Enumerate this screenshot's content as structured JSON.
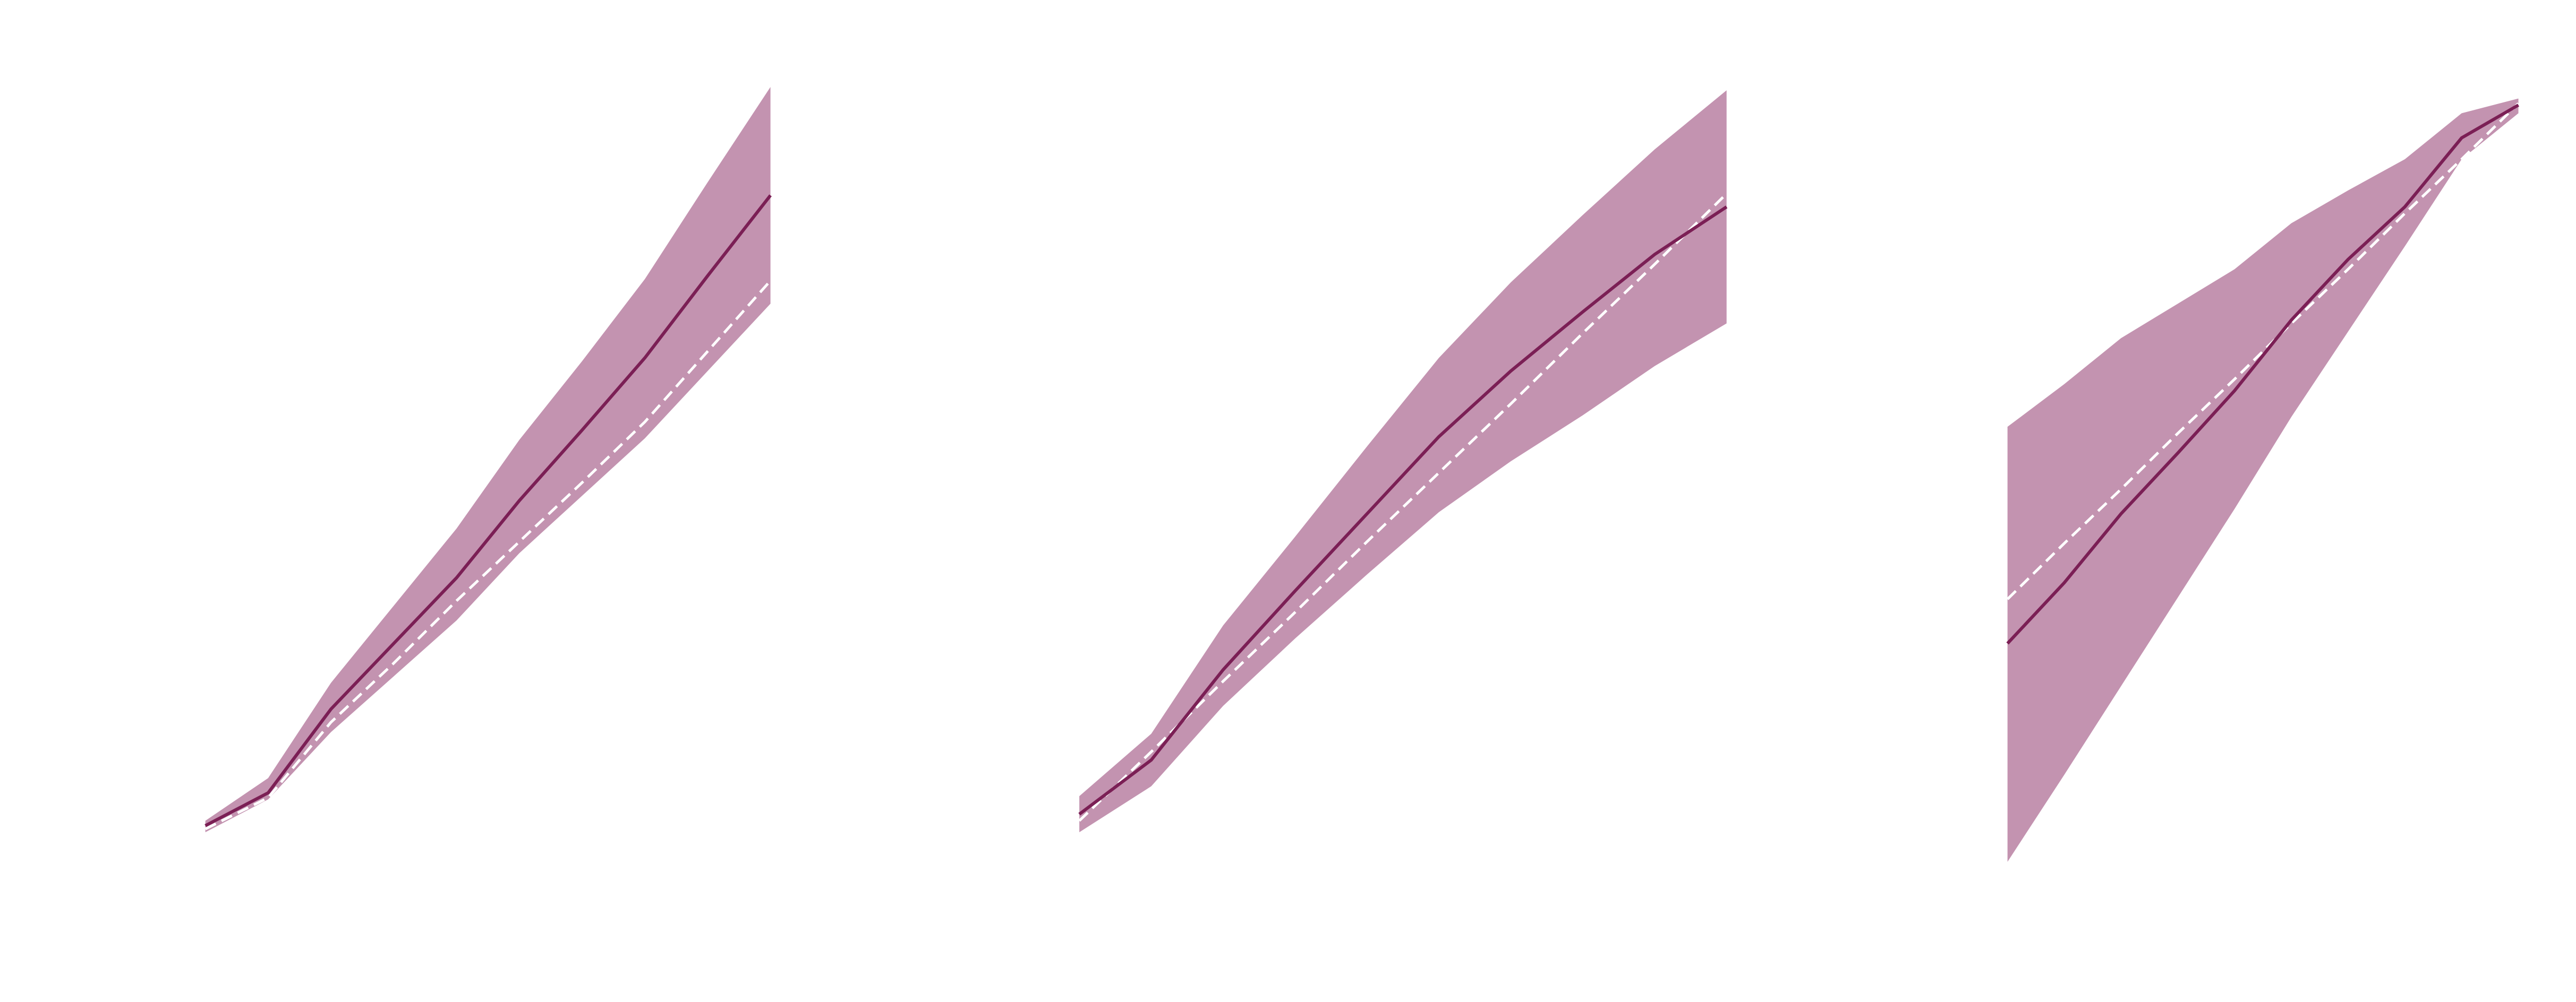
{
  "chart_data": [
    {
      "type": "line",
      "x": [
        0,
        1,
        2,
        3,
        4,
        5,
        6,
        7,
        8,
        9
      ],
      "xlim": [
        0,
        9
      ],
      "ylim": [
        0,
        600
      ],
      "color": "#7b1f55",
      "values": [
        97,
        117,
        168,
        208,
        248,
        295,
        338,
        382,
        432,
        481
      ],
      "band": {
        "color": "#c393b0",
        "upper": [
          100,
          126,
          184,
          231,
          278,
          332,
          380,
          430,
          489,
          547
        ],
        "lower": [
          93,
          113,
          154,
          188,
          222,
          263,
          298,
          333,
          374,
          415
        ]
      },
      "reference": {
        "color": "#ffffff",
        "values": [
          95,
          114,
          160,
          196,
          234,
          270,
          306,
          343,
          386,
          429
        ]
      }
    },
    {
      "type": "line",
      "x": [
        0,
        1,
        2,
        3,
        4,
        5,
        6,
        7,
        8,
        9
      ],
      "xlim": [
        0,
        9
      ],
      "ylim": [
        0,
        600
      ],
      "color": "#7b1f55",
      "values": [
        104,
        137,
        192,
        240,
        287,
        334,
        374,
        410,
        445,
        474
      ],
      "band": {
        "color": "#c393b0",
        "upper": [
          115,
          153,
          219,
          273,
          328,
          382,
          428,
          469,
          509,
          545
        ],
        "lower": [
          93,
          121,
          170,
          211,
          250,
          288,
          319,
          347,
          377,
          403
        ]
      },
      "reference": {
        "color": "#ffffff",
        "values": [
          100,
          142,
          185,
          227,
          270,
          312,
          354,
          397,
          439,
          482
        ]
      }
    },
    {
      "type": "line",
      "x": [
        0,
        1,
        2,
        3,
        4,
        5,
        6,
        7,
        8,
        9
      ],
      "xlim": [
        0,
        9
      ],
      "ylim": [
        0,
        600
      ],
      "color": "#7b1f55",
      "values": [
        208,
        245,
        287,
        324,
        362,
        405,
        442,
        474,
        516,
        536
      ],
      "band": {
        "color": "#c393b0",
        "upper": [
          340,
          366,
          394,
          415,
          436,
          464,
          484,
          503,
          531,
          540
        ],
        "lower": [
          75,
          128,
          182,
          236,
          290,
          346,
          398,
          450,
          503,
          531
        ]
      },
      "reference": {
        "color": "#ffffff",
        "values": [
          235,
          269,
          302,
          336,
          369,
          403,
          436,
          470,
          503,
          537
        ]
      }
    }
  ]
}
